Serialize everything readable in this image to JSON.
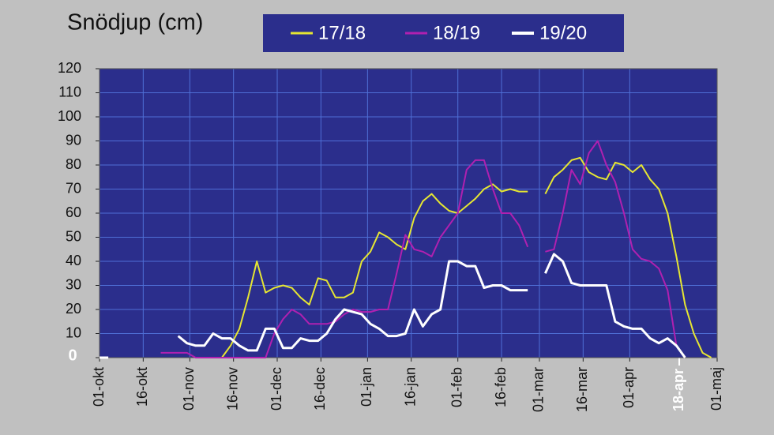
{
  "chart_data": {
    "type": "line",
    "title": "Snödjup (cm)",
    "x": [
      0,
      3,
      6,
      9,
      12,
      15,
      18,
      21,
      24,
      27,
      30,
      33,
      36,
      39,
      42,
      45,
      48,
      51,
      54,
      57,
      60,
      63,
      66,
      69,
      72,
      75,
      78,
      81,
      84,
      87,
      90,
      93,
      96,
      99,
      102,
      105,
      108,
      111,
      114,
      117,
      120,
      123,
      126,
      129,
      132,
      135,
      138,
      141,
      144,
      147,
      150,
      153,
      156,
      159,
      162,
      165,
      168,
      171,
      174,
      177,
      180,
      183,
      186,
      189,
      192,
      195,
      198,
      201,
      204,
      207,
      210
    ],
    "xlim": [
      0,
      212
    ],
    "xticks": [
      {
        "value": 0,
        "label": "01-okt"
      },
      {
        "value": 15,
        "label": "16-okt"
      },
      {
        "value": 31,
        "label": "01-nov"
      },
      {
        "value": 46,
        "label": "16-nov"
      },
      {
        "value": 61,
        "label": "01-dec"
      },
      {
        "value": 76,
        "label": "16-dec"
      },
      {
        "value": 92,
        "label": "01-jan"
      },
      {
        "value": 107,
        "label": "16-jan"
      },
      {
        "value": 123,
        "label": "01-feb"
      },
      {
        "value": 138,
        "label": "16-feb"
      },
      {
        "value": 151,
        "label": "01-mar"
      },
      {
        "value": 166,
        "label": "16-mar"
      },
      {
        "value": 182,
        "label": "01-apr"
      },
      {
        "value": 199,
        "label": "18-apr",
        "color": "#ffffff"
      },
      {
        "value": 212,
        "label": "01-maj"
      }
    ],
    "ylim": [
      0,
      120
    ],
    "yticks": [
      {
        "value": 0,
        "label": "0",
        "color": "#ffffff"
      },
      10,
      20,
      30,
      40,
      50,
      60,
      70,
      80,
      90,
      100,
      110,
      120
    ],
    "grid": true,
    "series": [
      {
        "name": "17/18",
        "color": "#e6e632",
        "line_width": 2,
        "values": [
          null,
          null,
          null,
          null,
          null,
          null,
          null,
          null,
          null,
          null,
          null,
          null,
          null,
          0,
          0,
          5,
          12,
          25,
          40,
          27,
          29,
          30,
          29,
          25,
          22,
          33,
          32,
          25,
          25,
          27,
          40,
          44,
          52,
          50,
          47,
          45,
          58,
          65,
          68,
          64,
          61,
          60,
          63,
          66,
          70,
          72,
          69,
          70,
          69,
          69,
          null,
          68,
          75,
          78,
          82,
          83,
          77,
          75,
          74,
          81,
          80,
          77,
          80,
          74,
          70,
          60,
          42,
          22,
          10,
          2,
          0
        ]
      },
      {
        "name": "18/19",
        "color": "#b020b0",
        "line_width": 2,
        "values": [
          null,
          null,
          null,
          null,
          null,
          null,
          null,
          2,
          2,
          2,
          2,
          0,
          0,
          0,
          0,
          0,
          0,
          0,
          0,
          0,
          10,
          16,
          20,
          18,
          14,
          14,
          14,
          15,
          18,
          20,
          19,
          19,
          20,
          20,
          35,
          51,
          45,
          44,
          42,
          50,
          55,
          60,
          78,
          82,
          82,
          70,
          60,
          60,
          55,
          46,
          null,
          44,
          45,
          60,
          78,
          72,
          85,
          90,
          80,
          73,
          60,
          45,
          41,
          40,
          37,
          28,
          5,
          0,
          null,
          null,
          null
        ]
      },
      {
        "name": "19/20",
        "color": "#ffffff",
        "line_width": 3,
        "values": [
          0,
          0,
          null,
          null,
          null,
          null,
          null,
          null,
          null,
          9,
          6,
          5,
          5,
          10,
          8,
          8,
          5,
          3,
          3,
          12,
          12,
          4,
          4,
          8,
          7,
          7,
          10,
          16,
          20,
          19,
          18,
          14,
          12,
          9,
          9,
          10,
          20,
          13,
          18,
          20,
          40,
          40,
          38,
          38,
          29,
          30,
          30,
          28,
          28,
          28,
          null,
          35,
          43,
          40,
          31,
          30,
          30,
          30,
          30,
          15,
          13,
          12,
          12,
          8,
          6,
          8,
          5,
          0,
          null,
          null,
          null
        ]
      }
    ]
  }
}
